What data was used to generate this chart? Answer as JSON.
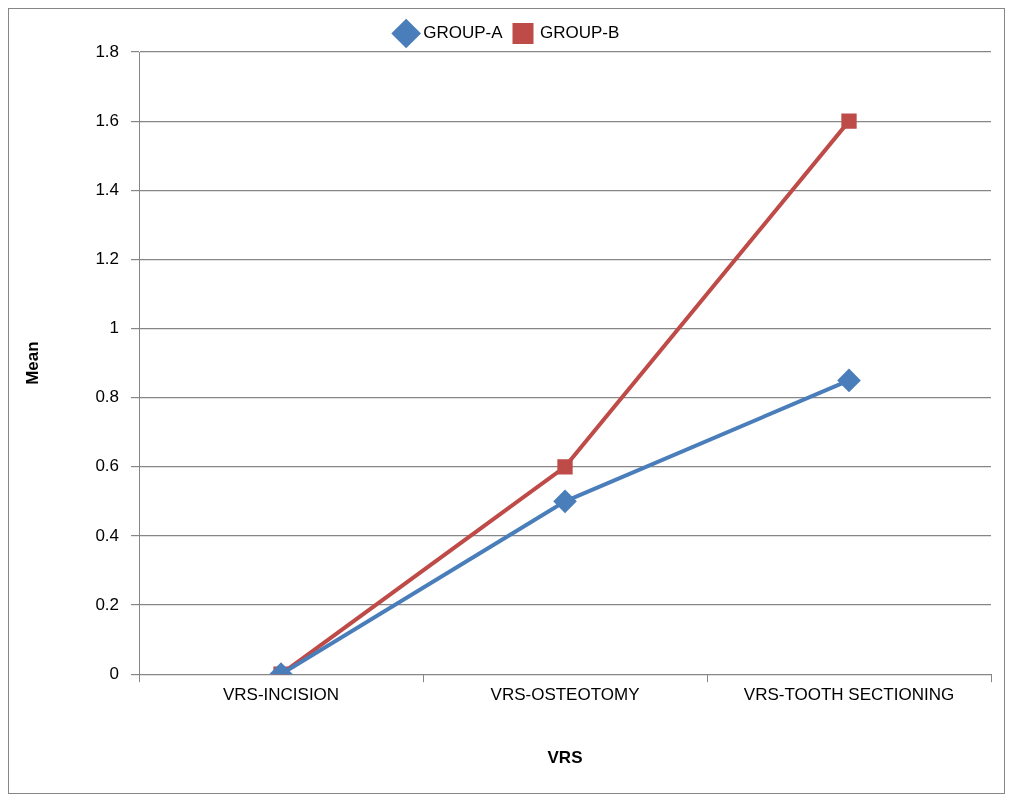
{
  "chart_data": {
    "type": "line",
    "xlabel": "VRS",
    "ylabel": "Mean",
    "categories": [
      "VRS-INCISION",
      "VRS-OSTEOTOMY",
      "VRS-TOOTH SECTIONING"
    ],
    "series": [
      {
        "name": "GROUP-A",
        "color": "#4a7ebb",
        "values": [
          0,
          0.5,
          0.85
        ],
        "marker": "diamond"
      },
      {
        "name": "GROUP-B",
        "color": "#be4b48",
        "values": [
          0,
          0.6,
          1.6
        ],
        "marker": "square"
      }
    ],
    "ylim": [
      0,
      1.8
    ],
    "yticks": [
      0,
      0.2,
      0.4,
      0.6,
      0.8,
      1,
      1.2,
      1.4,
      1.6,
      1.8
    ],
    "grid": "y",
    "legend": "top",
    "line_style": "solid"
  }
}
